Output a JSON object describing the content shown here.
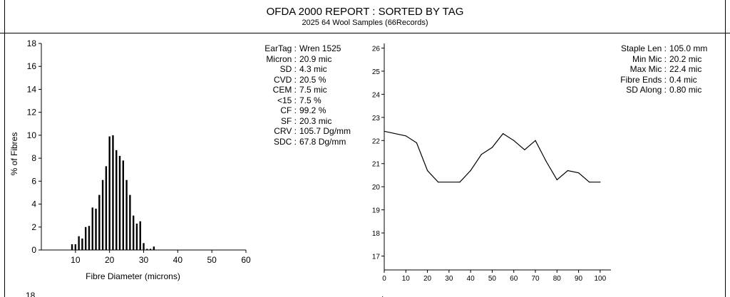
{
  "report": {
    "title": "OFDA 2000 REPORT : SORTED BY TAG",
    "subtitle": "2025 64 Wool Samples (66Records)"
  },
  "stats_left": [
    {
      "label": "EarTag :",
      "value": "Wren 1525"
    },
    {
      "label": "Micron :",
      "value": "20.9 mic"
    },
    {
      "label": "SD :",
      "value": "4.3 mic"
    },
    {
      "label": "CVD :",
      "value": "20.5 %"
    },
    {
      "label": "CEM :",
      "value": "7.5 mic"
    },
    {
      "label": "<15 :",
      "value": "7.5 %"
    },
    {
      "label": "CF :",
      "value": "99.2 %"
    },
    {
      "label": "SF :",
      "value": "20.3 mic"
    },
    {
      "label": "CRV :",
      "value": "105.7 Dg/mm"
    },
    {
      "label": "SDC :",
      "value": "67.8 Dg/mm"
    }
  ],
  "stats_right": [
    {
      "label": "Staple Len :",
      "value": "105.0 mm"
    },
    {
      "label": "Min Mic :",
      "value": "20.2 mic"
    },
    {
      "label": "Max Mic :",
      "value": "22.4 mic"
    },
    {
      "label": "Fibre Ends :",
      "value": "0.4 mic"
    },
    {
      "label": "SD Along :",
      "value": "0.80 mic"
    }
  ],
  "chart_data": [
    {
      "type": "bar",
      "xlabel": "Fibre Diameter (microns)",
      "ylabel": "% of Fibres",
      "xlim": [
        0,
        60
      ],
      "ylim": [
        0,
        18
      ],
      "xticks": [
        10,
        20,
        30,
        40,
        50,
        60
      ],
      "yticks": [
        0,
        2,
        4,
        6,
        8,
        10,
        12,
        14,
        16,
        18
      ],
      "bar_width": 0.5,
      "x": [
        9,
        10,
        11,
        12,
        13,
        14,
        15,
        16,
        17,
        18,
        19,
        20,
        21,
        22,
        23,
        24,
        25,
        26,
        27,
        28,
        29,
        30,
        31,
        32,
        33
      ],
      "values": [
        0.5,
        0.5,
        1.2,
        1.0,
        2.0,
        2.1,
        3.7,
        3.6,
        4.8,
        6.1,
        7.3,
        9.9,
        10.0,
        8.7,
        8.2,
        7.8,
        6.1,
        4.8,
        3.0,
        2.3,
        2.5,
        0.6,
        0.1,
        0.1,
        0.3
      ],
      "grid": false
    },
    {
      "type": "line",
      "xlabel": "",
      "ylabel": "",
      "xlim": [
        0,
        105
      ],
      "ylim": [
        16.4,
        26.2
      ],
      "xticks": [
        0,
        10,
        20,
        30,
        40,
        50,
        60,
        70,
        80,
        90,
        100
      ],
      "yticks": [
        17,
        18,
        19,
        20,
        21,
        22,
        23,
        24,
        25,
        26
      ],
      "x": [
        0,
        10,
        15,
        20,
        25,
        35,
        40,
        45,
        50,
        55,
        60,
        65,
        70,
        75,
        80,
        85,
        90,
        95,
        100
      ],
      "values": [
        22.4,
        22.2,
        21.9,
        20.7,
        20.2,
        20.2,
        20.7,
        21.4,
        21.7,
        22.3,
        22.0,
        21.6,
        22.0,
        21.1,
        20.3,
        20.7,
        20.6,
        20.2,
        20.2
      ],
      "grid": false
    }
  ]
}
